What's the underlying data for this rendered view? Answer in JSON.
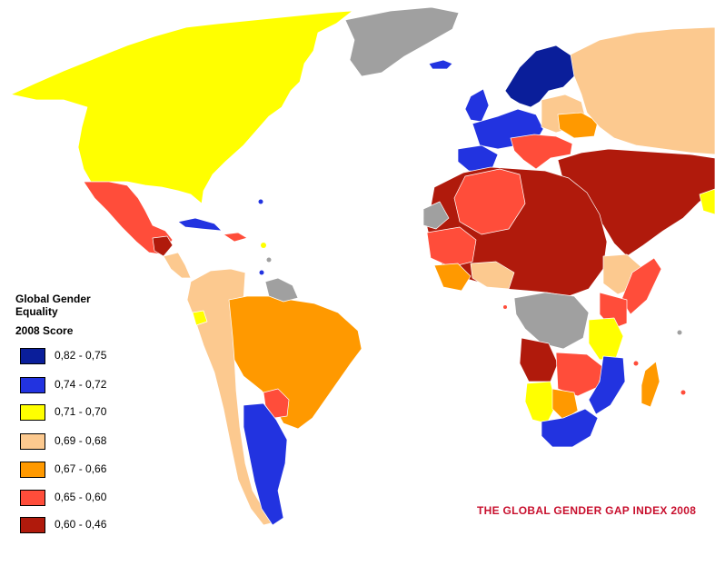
{
  "legend": {
    "title": "Global Gender Equality",
    "subtitle": "2008 Score",
    "items": [
      {
        "label": "0,82 - 0,75",
        "color": "#0a1e9a"
      },
      {
        "label": "0,74 - 0,72",
        "color": "#2233e0"
      },
      {
        "label": "0,71 - 0,70",
        "color": "#ffff00"
      },
      {
        "label": "0,69 - 0,68",
        "color": "#fcc98f"
      },
      {
        "label": "0,67 - 0,66",
        "color": "#ff9900"
      },
      {
        "label": "0,65 - 0,60",
        "color": "#ff4d3a"
      },
      {
        "label": "0,60 - 0,46",
        "color": "#b01a0c"
      }
    ],
    "no_data_color": "#a0a0a0"
  },
  "map_title": {
    "text": "THE GLOBAL GENDER GAP INDEX 2008",
    "color": "#c8102e"
  }
}
